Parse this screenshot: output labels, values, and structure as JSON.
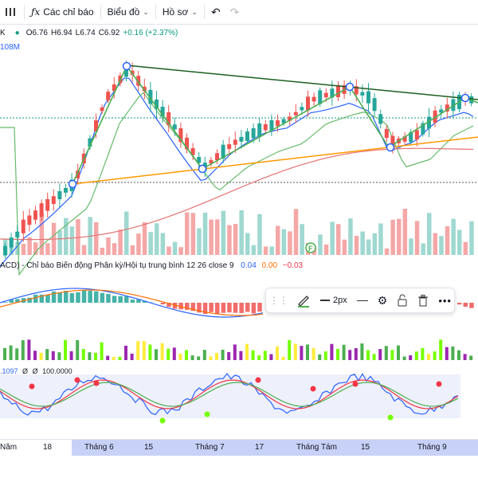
{
  "toolbar": {
    "indicators_label": "Các chỉ báo",
    "chart_label": "Biểu đồ",
    "profile_label": "Hồ sơ"
  },
  "legend": {
    "symbol_tail": "K",
    "open": "O6.76",
    "high": "H6.94",
    "low": "L6.74",
    "close": "C6.92",
    "change": "+0.16 (+2.37%)",
    "volume": "108M"
  },
  "macd": {
    "label": "ACD) - Chỉ báo Biến động Phân kỳ/Hội tụ trung bình 12 26 close 9",
    "v1": "0.04",
    "v2": "0.00",
    "v3": "−0.03"
  },
  "stoch": {
    "label": ".1097",
    "v1": "Ø",
    "v2": "Ø",
    "v3": "100.0000"
  },
  "float_toolbar": {
    "width_label": "2px"
  },
  "time_axis": {
    "labels": [
      "Năm",
      "18",
      "Tháng 6",
      "15",
      "Tháng 7",
      "17",
      "Tháng Tám",
      "15",
      "Tháng 9"
    ]
  },
  "colors": {
    "up": "#26a69a",
    "down": "#ef5350",
    "accent": "#2962ff"
  }
}
